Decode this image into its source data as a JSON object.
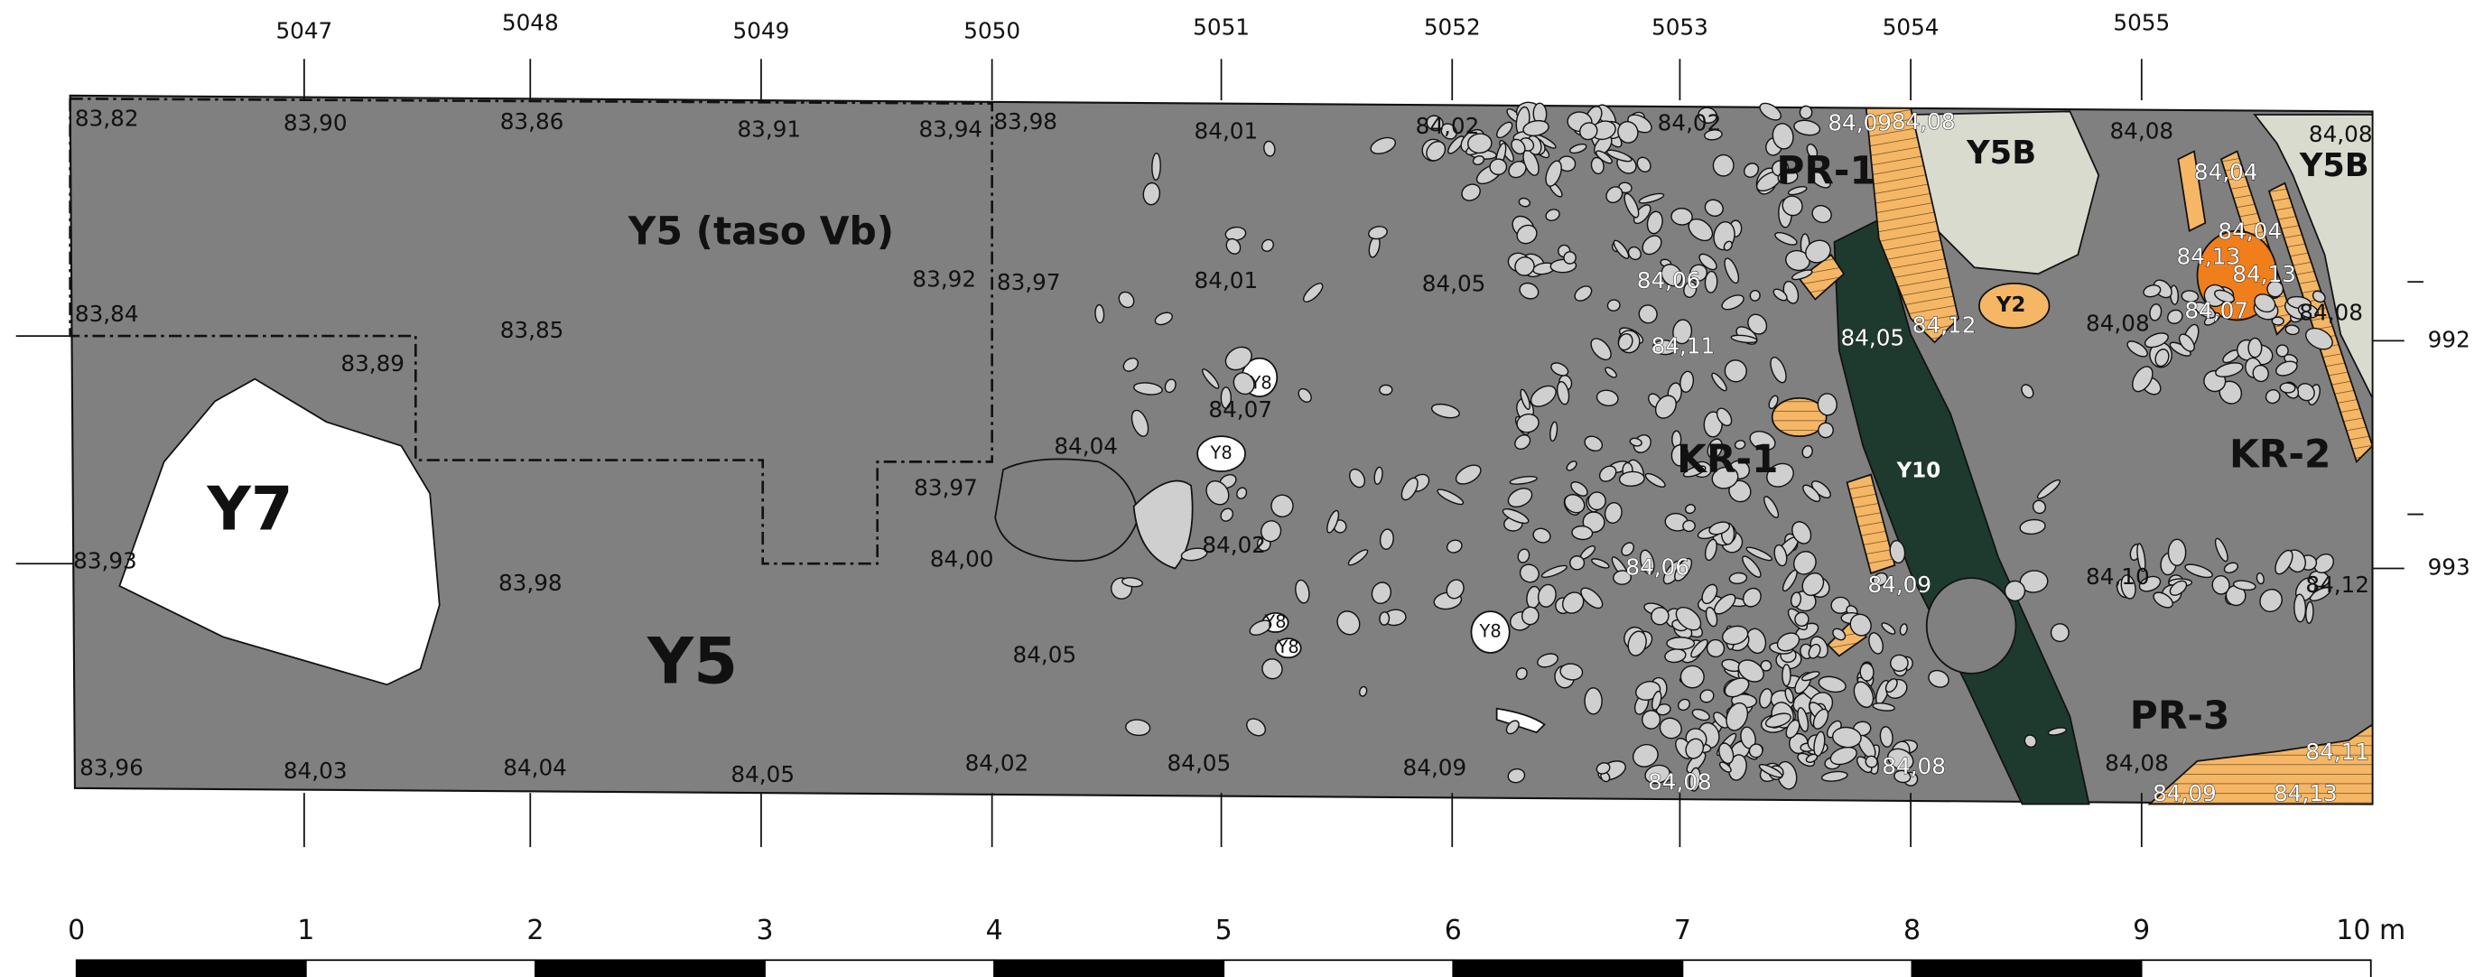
{
  "grid_east": [
    "5047",
    "5048",
    "5049",
    "5050",
    "5051",
    "5052",
    "5053",
    "5054",
    "5055"
  ],
  "grid_north": [
    "992",
    "993"
  ],
  "elevations": [
    "83,82",
    "83,90",
    "83,86",
    "83,91",
    "83,94",
    "83,98",
    "84,01",
    "84,02",
    "84,02",
    "84,09",
    "84,08",
    "84,08",
    "84,04",
    "84,08",
    "83,84",
    "83,85",
    "83,89",
    "83,92",
    "83,97",
    "84,01",
    "84,05",
    "84,06",
    "84,11",
    "84,05",
    "84,12",
    "84,08",
    "84,04",
    "84,13",
    "84,13",
    "84,07",
    "84,08",
    "84,07",
    "84,04",
    "83,97",
    "84,00",
    "84,02",
    "84,06",
    "84,09",
    "84,10",
    "84,12",
    "83,93",
    "83,98",
    "84,05",
    "83,96",
    "84,03",
    "84,04",
    "84,05",
    "84,02",
    "84,05",
    "84,09",
    "84,08",
    "84,08",
    "84,08",
    "84,11",
    "84,09",
    "84,13"
  ],
  "features": [
    "Y5 (taso Vb)",
    "Y7",
    "Y5",
    "PR-1",
    "Y5B",
    "Y5B",
    "Y2",
    "Y10",
    "KR-1",
    "KR-2",
    "PR-3"
  ],
  "small_labels": [
    "Y8",
    "Y8",
    "Y8",
    "Y8",
    "Y8"
  ],
  "scale_bar": [
    "0",
    "1",
    "2",
    "3",
    "4",
    "5",
    "6",
    "7",
    "8",
    "9",
    "10 m"
  ]
}
